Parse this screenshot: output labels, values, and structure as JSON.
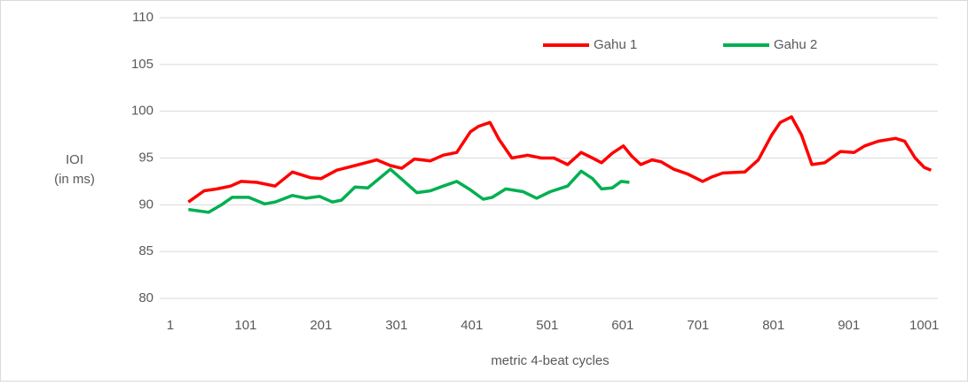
{
  "chart_data": {
    "type": "line",
    "ylabel": [
      "IOI",
      "(in ms)"
    ],
    "xlabel": "metric 4-beat cycles",
    "xlim": [
      -13,
      1019
    ],
    "xticks": [
      1,
      101,
      201,
      301,
      401,
      501,
      601,
      701,
      801,
      901,
      1001
    ],
    "ylim": [
      80,
      110
    ],
    "yticks": [
      80,
      85,
      90,
      95,
      100,
      105,
      110
    ],
    "grid": true,
    "legend": "top",
    "series": [
      {
        "name": "Gahu 1",
        "color": "#ff0000",
        "x": [
          25,
          46,
          63,
          81,
          95,
          116,
          140,
          163,
          187,
          201,
          222,
          246,
          275,
          293,
          308,
          325,
          346,
          363,
          381,
          399,
          410,
          425,
          437,
          454,
          475,
          493,
          510,
          528,
          546,
          561,
          573,
          587,
          602,
          613,
          625,
          640,
          652,
          669,
          687,
          707,
          720,
          734,
          763,
          781,
          799,
          810,
          825,
          838,
          852,
          869,
          890,
          908,
          922,
          940,
          963,
          975,
          989,
          1001,
          1010
        ],
        "values": [
          90.3,
          91.5,
          91.7,
          92.0,
          92.5,
          92.4,
          92.0,
          93.5,
          92.9,
          92.8,
          93.7,
          94.2,
          94.8,
          94.2,
          93.9,
          94.9,
          94.7,
          95.3,
          95.6,
          97.8,
          98.4,
          98.8,
          97.0,
          95.0,
          95.3,
          95.0,
          95.0,
          94.3,
          95.6,
          95.0,
          94.5,
          95.5,
          96.3,
          95.2,
          94.3,
          94.8,
          94.6,
          93.8,
          93.3,
          92.5,
          93.0,
          93.4,
          93.5,
          94.8,
          97.5,
          98.8,
          99.4,
          97.5,
          94.3,
          94.5,
          95.7,
          95.6,
          96.3,
          96.8,
          97.1,
          96.8,
          95.0,
          94.0,
          93.7
        ]
      },
      {
        "name": "Gahu 2",
        "color": "#00b050",
        "x": [
          25,
          52,
          69,
          83,
          105,
          126,
          140,
          163,
          181,
          199,
          216,
          228,
          246,
          263,
          275,
          293,
          310,
          328,
          346,
          363,
          381,
          399,
          416,
          428,
          446,
          469,
          487,
          505,
          528,
          546,
          561,
          573,
          587,
          599,
          610
        ],
        "values": [
          89.5,
          89.2,
          90.0,
          90.8,
          90.8,
          90.1,
          90.3,
          91.0,
          90.7,
          90.9,
          90.3,
          90.5,
          91.9,
          91.8,
          92.6,
          93.8,
          92.6,
          91.3,
          91.5,
          92.0,
          92.5,
          91.6,
          90.6,
          90.8,
          91.7,
          91.4,
          90.7,
          91.4,
          92.0,
          93.6,
          92.8,
          91.7,
          91.8,
          92.5,
          92.4
        ]
      }
    ]
  }
}
